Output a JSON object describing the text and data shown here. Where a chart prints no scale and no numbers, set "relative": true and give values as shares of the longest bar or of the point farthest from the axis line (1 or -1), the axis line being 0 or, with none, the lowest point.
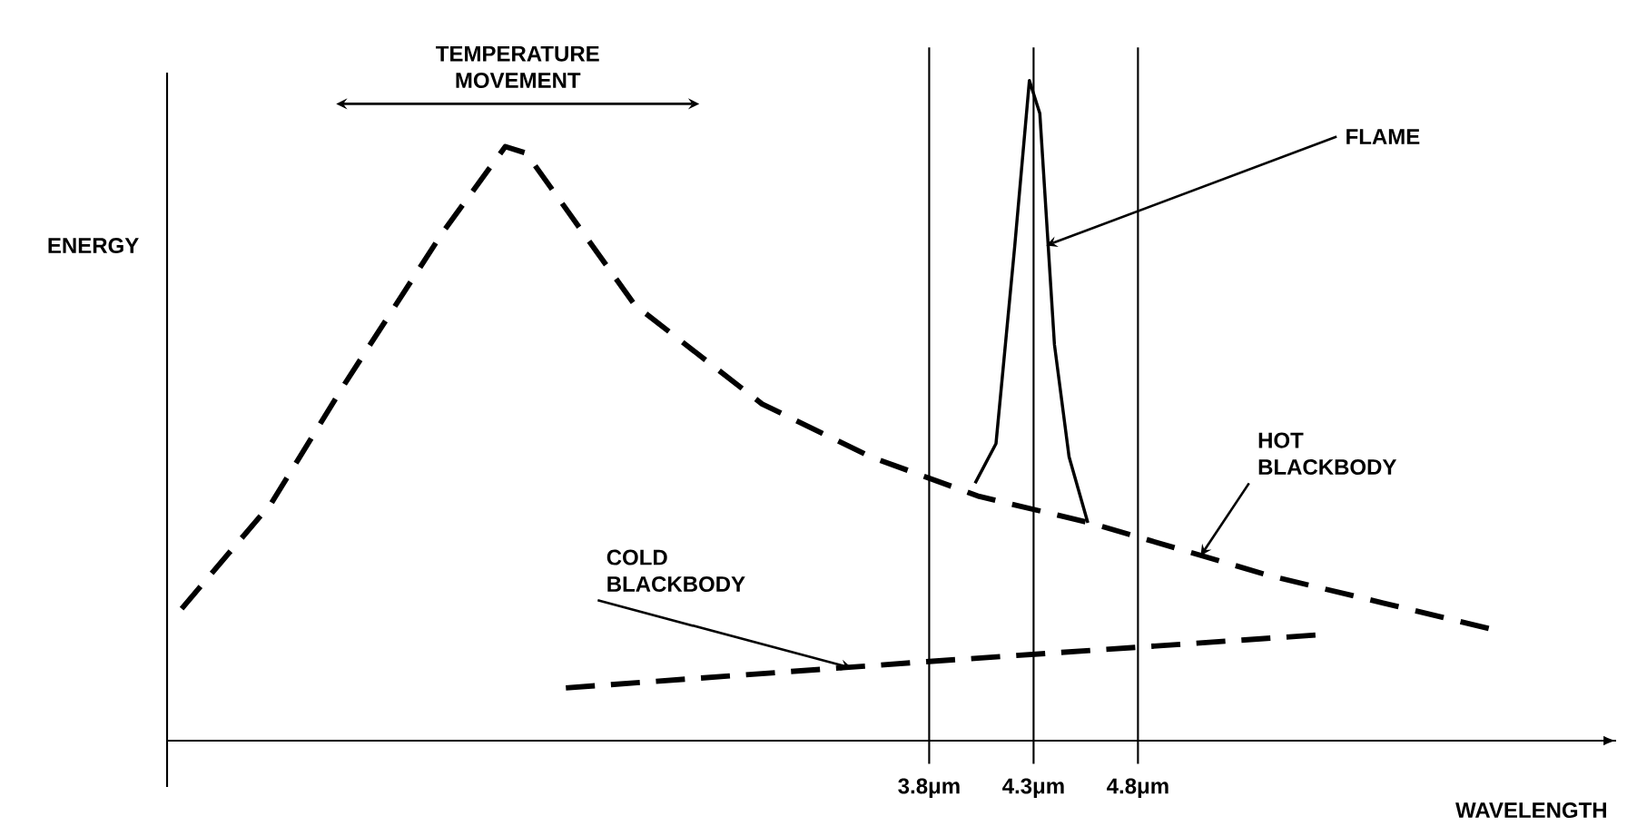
{
  "chart_data": {
    "type": "line",
    "relative": true,
    "xlabel": "WAVELENGTH",
    "ylabel": "ENERGY",
    "xlim": [
      0.15,
      7.09
    ],
    "xticks": [
      {
        "value": 3.8,
        "label": "3.8μm"
      },
      {
        "value": 4.3,
        "label": "4.3μm"
      },
      {
        "value": 4.8,
        "label": "4.8μm"
      }
    ],
    "series": [
      {
        "color": "#000000",
        "line_style": "dashed",
        "x": [
          0.22,
          0.65,
          1.0,
          1.47,
          1.77,
          1.87,
          2.39,
          3.0,
          3.52,
          4.04,
          4.57,
          5.43,
          6.48
        ],
        "values": [
          0.2,
          0.36,
          0.54,
          0.77,
          0.9,
          0.89,
          0.66,
          0.51,
          0.43,
          0.37,
          0.33,
          0.25,
          0.17
        ]
      },
      {
        "color": "#000000",
        "line_style": "dashed",
        "x": [
          2.06,
          3.8,
          5.65
        ],
        "values": [
          0.08,
          0.12,
          0.16
        ]
      },
      {
        "color": "#000000",
        "line_style": "solid",
        "x": [
          4.02,
          4.12,
          4.21,
          4.28,
          4.33,
          4.4,
          4.47,
          4.56
        ],
        "values": [
          0.39,
          0.45,
          0.75,
          1.0,
          0.95,
          0.6,
          0.43,
          0.33
        ]
      }
    ],
    "ref_lines": [
      {
        "axis": "x",
        "value": 3.8
      },
      {
        "axis": "x",
        "value": 4.3
      },
      {
        "axis": "x",
        "value": 4.8
      }
    ],
    "annotations": [
      "TEMPERATURE MOVEMENT",
      {
        "text": "FLAME",
        "x": 4.36,
        "y": 0.75
      },
      {
        "text": "HOT BLACKBODY",
        "x": 5.1,
        "y": 0.28
      },
      {
        "text": "COLD BLACKBODY",
        "x": 3.43,
        "y": 0.11
      }
    ],
    "marker": "none"
  }
}
